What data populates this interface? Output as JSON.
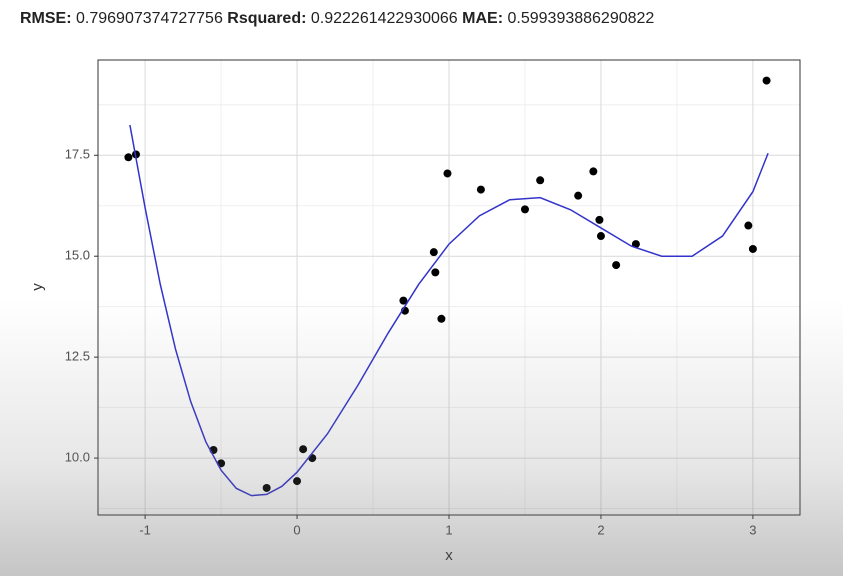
{
  "header": {
    "metrics": [
      {
        "label": "RMSE:",
        "value": "0.796907374727756"
      },
      {
        "label": "Rsquared:",
        "value": "0.922261422930066"
      },
      {
        "label": "MAE:",
        "value": "0.599393886290822"
      }
    ]
  },
  "chart_data": {
    "type": "scatter",
    "x_label": "x",
    "y_label": "y",
    "xlim": [
      -1.31,
      3.31
    ],
    "ylim": [
      8.59,
      19.86
    ],
    "xticks": [
      -1,
      0,
      1,
      2,
      3
    ],
    "yticks": [
      {
        "value": 10,
        "label": "10.0"
      },
      12.5,
      {
        "value": 15,
        "label": "15.0"
      },
      17.5
    ],
    "grid": true,
    "series": [
      {
        "type": "scatter",
        "color": "#000000",
        "x": [
          -1.11,
          -1.06,
          -0.55,
          -0.5,
          -0.2,
          0.0,
          0.04,
          0.1,
          0.7,
          0.71,
          0.9,
          0.91,
          0.95,
          0.99,
          1.21,
          1.5,
          1.6,
          1.85,
          1.95,
          1.99,
          2.0,
          2.1,
          2.23,
          2.97,
          3.0,
          3.09
        ],
        "values": [
          17.45,
          17.52,
          10.2,
          9.87,
          9.26,
          9.43,
          10.22,
          10.0,
          13.9,
          13.65,
          15.1,
          14.6,
          13.45,
          17.05,
          16.65,
          16.16,
          16.88,
          16.5,
          17.1,
          15.9,
          15.5,
          14.78,
          15.3,
          15.76,
          15.18,
          19.35
        ]
      },
      {
        "type": "line",
        "color": "#3333cc",
        "x": [
          -1.1,
          -1.0,
          -0.9,
          -0.8,
          -0.7,
          -0.6,
          -0.5,
          -0.4,
          -0.3,
          -0.2,
          -0.1,
          0,
          0.2,
          0.4,
          0.6,
          0.8,
          1.0,
          1.2,
          1.4,
          1.6,
          1.8,
          2.0,
          2.2,
          2.4,
          2.6,
          2.8,
          3.0,
          3.1
        ],
        "values": [
          18.25,
          16.2,
          14.3,
          12.7,
          11.4,
          10.4,
          9.7,
          9.25,
          9.07,
          9.1,
          9.3,
          9.65,
          10.6,
          11.8,
          13.1,
          14.3,
          15.3,
          16.0,
          16.4,
          16.45,
          16.15,
          15.7,
          15.25,
          15.0,
          15.0,
          15.5,
          16.6,
          17.55
        ]
      }
    ]
  }
}
